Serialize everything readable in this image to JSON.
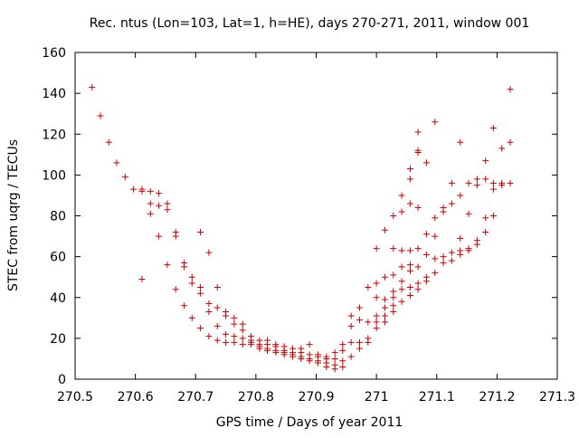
{
  "chart_data": {
    "type": "scatter",
    "title": "Rec. ntus (Lon=103, Lat=1, h=HE), days 270-271, 2011, window 001",
    "xlabel": "GPS time / Days of year 2011",
    "ylabel": "STEC from uqrg / TECUs",
    "xlim": [
      270.5,
      271.3
    ],
    "ylim": [
      0,
      160
    ],
    "xticks": [
      270.5,
      270.6,
      270.7,
      270.8,
      270.9,
      271,
      271.1,
      271.2,
      271.3
    ],
    "xtick_labels": [
      "270.5",
      "270.6",
      "270.7",
      "270.8",
      "270.9",
      "271",
      "271.1",
      "271.2",
      "271.3"
    ],
    "yticks": [
      0,
      20,
      40,
      60,
      80,
      100,
      120,
      140,
      160
    ],
    "ytick_labels": [
      "0",
      "20",
      "40",
      "60",
      "80",
      "100",
      "120",
      "140",
      "160"
    ],
    "grid": false,
    "marker": "plus",
    "color": "#cc0000",
    "series": [
      {
        "points": [
          [
            270.528,
            143
          ],
          [
            270.542,
            129
          ],
          [
            270.556,
            116
          ],
          [
            270.569,
            106
          ],
          [
            270.583,
            99
          ],
          [
            270.597,
            93
          ],
          [
            270.611,
            93
          ],
          [
            270.611,
            92
          ],
          [
            270.611,
            49
          ],
          [
            270.625,
            92
          ],
          [
            270.625,
            86
          ],
          [
            270.625,
            81
          ],
          [
            270.639,
            91
          ],
          [
            270.639,
            85
          ],
          [
            270.639,
            70
          ],
          [
            270.653,
            86
          ],
          [
            270.653,
            83
          ],
          [
            270.653,
            56
          ],
          [
            270.667,
            72
          ],
          [
            270.667,
            70
          ],
          [
            270.667,
            44
          ],
          [
            270.681,
            57
          ],
          [
            270.681,
            55
          ],
          [
            270.681,
            36
          ],
          [
            270.694,
            50
          ],
          [
            270.694,
            47
          ],
          [
            270.694,
            30
          ],
          [
            270.708,
            72
          ],
          [
            270.708,
            45
          ],
          [
            270.708,
            42
          ],
          [
            270.708,
            25
          ],
          [
            270.722,
            62
          ],
          [
            270.722,
            37
          ],
          [
            270.722,
            33
          ],
          [
            270.722,
            21
          ],
          [
            270.736,
            45
          ],
          [
            270.736,
            35
          ],
          [
            270.736,
            26
          ],
          [
            270.736,
            19
          ],
          [
            270.75,
            33
          ],
          [
            270.75,
            31
          ],
          [
            270.75,
            22
          ],
          [
            270.75,
            18
          ],
          [
            270.764,
            30
          ],
          [
            270.764,
            27
          ],
          [
            270.764,
            21
          ],
          [
            270.764,
            18
          ],
          [
            270.778,
            27
          ],
          [
            270.778,
            24
          ],
          [
            270.778,
            20
          ],
          [
            270.778,
            17
          ],
          [
            270.792,
            21
          ],
          [
            270.792,
            19
          ],
          [
            270.792,
            18
          ],
          [
            270.792,
            17
          ],
          [
            270.806,
            19
          ],
          [
            270.806,
            17
          ],
          [
            270.806,
            16
          ],
          [
            270.806,
            15
          ],
          [
            270.819,
            19
          ],
          [
            270.819,
            17
          ],
          [
            270.819,
            15
          ],
          [
            270.819,
            14
          ],
          [
            270.833,
            17
          ],
          [
            270.833,
            16
          ],
          [
            270.833,
            14
          ],
          [
            270.833,
            13
          ],
          [
            270.847,
            16
          ],
          [
            270.847,
            14
          ],
          [
            270.847,
            13
          ],
          [
            270.847,
            12
          ],
          [
            270.861,
            15
          ],
          [
            270.861,
            13
          ],
          [
            270.861,
            12
          ],
          [
            270.861,
            11
          ],
          [
            270.875,
            15
          ],
          [
            270.875,
            13
          ],
          [
            270.875,
            11
          ],
          [
            270.875,
            10
          ],
          [
            270.889,
            17
          ],
          [
            270.889,
            12
          ],
          [
            270.889,
            10
          ],
          [
            270.889,
            9
          ],
          [
            270.903,
            12
          ],
          [
            270.903,
            11
          ],
          [
            270.903,
            9
          ],
          [
            270.903,
            8
          ],
          [
            270.917,
            11
          ],
          [
            270.917,
            10
          ],
          [
            270.917,
            8
          ],
          [
            270.917,
            6
          ],
          [
            270.931,
            13
          ],
          [
            270.931,
            10
          ],
          [
            270.931,
            7
          ],
          [
            270.931,
            5
          ],
          [
            270.944,
            17
          ],
          [
            270.944,
            14
          ],
          [
            270.944,
            9
          ],
          [
            270.944,
            6
          ],
          [
            270.958,
            31
          ],
          [
            270.958,
            26
          ],
          [
            270.958,
            18
          ],
          [
            270.958,
            11
          ],
          [
            270.972,
            35
          ],
          [
            270.972,
            29
          ],
          [
            270.972,
            18
          ],
          [
            270.972,
            15
          ],
          [
            270.986,
            45
          ],
          [
            270.986,
            28
          ],
          [
            270.986,
            20
          ],
          [
            270.986,
            18
          ],
          [
            271,
            64
          ],
          [
            271,
            47
          ],
          [
            271,
            40
          ],
          [
            271,
            31
          ],
          [
            271,
            28
          ],
          [
            271,
            25
          ],
          [
            271.014,
            73
          ],
          [
            271.014,
            50
          ],
          [
            271.014,
            39
          ],
          [
            271.014,
            35
          ],
          [
            271.014,
            31
          ],
          [
            271.014,
            28
          ],
          [
            271.028,
            80
          ],
          [
            271.028,
            64
          ],
          [
            271.028,
            51
          ],
          [
            271.028,
            43
          ],
          [
            271.028,
            40
          ],
          [
            271.028,
            36
          ],
          [
            271.028,
            33
          ],
          [
            271.042,
            90
          ],
          [
            271.042,
            82
          ],
          [
            271.042,
            63
          ],
          [
            271.042,
            55
          ],
          [
            271.042,
            48
          ],
          [
            271.042,
            44
          ],
          [
            271.042,
            38
          ],
          [
            271.056,
            103
          ],
          [
            271.056,
            98
          ],
          [
            271.056,
            86
          ],
          [
            271.056,
            63
          ],
          [
            271.056,
            56
          ],
          [
            271.056,
            53
          ],
          [
            271.056,
            45
          ],
          [
            271.056,
            41
          ],
          [
            271.069,
            121
          ],
          [
            271.069,
            112
          ],
          [
            271.069,
            111
          ],
          [
            271.069,
            84
          ],
          [
            271.069,
            64
          ],
          [
            271.069,
            55
          ],
          [
            271.069,
            47
          ],
          [
            271.069,
            44
          ],
          [
            271.083,
            106
          ],
          [
            271.083,
            71
          ],
          [
            271.083,
            61
          ],
          [
            271.083,
            50
          ],
          [
            271.083,
            48
          ],
          [
            271.097,
            126
          ],
          [
            271.097,
            79
          ],
          [
            271.097,
            70
          ],
          [
            271.097,
            59
          ],
          [
            271.097,
            52
          ],
          [
            271.111,
            84
          ],
          [
            271.111,
            82
          ],
          [
            271.111,
            60
          ],
          [
            271.111,
            57
          ],
          [
            271.125,
            96
          ],
          [
            271.125,
            86
          ],
          [
            271.125,
            62
          ],
          [
            271.125,
            58
          ],
          [
            271.139,
            116
          ],
          [
            271.139,
            90
          ],
          [
            271.139,
            69
          ],
          [
            271.139,
            63
          ],
          [
            271.139,
            61
          ],
          [
            271.153,
            96
          ],
          [
            271.153,
            81
          ],
          [
            271.153,
            64
          ],
          [
            271.153,
            63
          ],
          [
            271.167,
            98
          ],
          [
            271.167,
            95
          ],
          [
            271.167,
            68
          ],
          [
            271.167,
            66
          ],
          [
            271.181,
            107
          ],
          [
            271.181,
            98
          ],
          [
            271.181,
            79
          ],
          [
            271.181,
            72
          ],
          [
            271.194,
            123
          ],
          [
            271.194,
            96
          ],
          [
            271.194,
            93
          ],
          [
            271.194,
            80
          ],
          [
            271.208,
            113
          ],
          [
            271.208,
            96
          ],
          [
            271.208,
            95
          ],
          [
            271.222,
            142
          ],
          [
            271.222,
            116
          ],
          [
            271.222,
            96
          ]
        ]
      }
    ]
  }
}
